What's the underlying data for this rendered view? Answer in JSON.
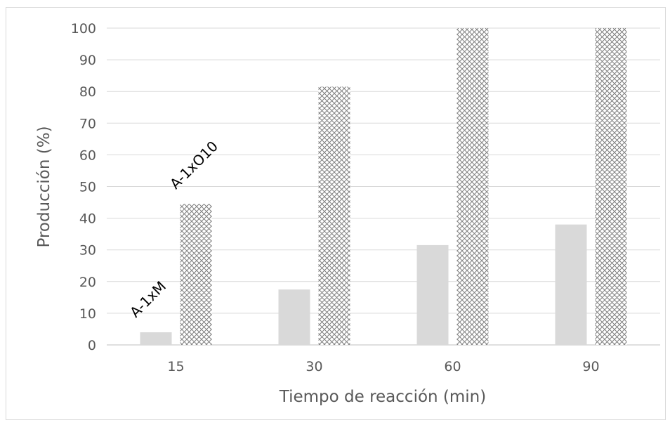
{
  "chart_data": {
    "type": "bar",
    "title": "",
    "xlabel": "Tiempo de reacción (min)",
    "ylabel": "Producción (%)",
    "categories": [
      "15",
      "30",
      "60",
      "90"
    ],
    "ylim": [
      0,
      100
    ],
    "yticks": [
      0,
      10,
      20,
      30,
      40,
      50,
      60,
      70,
      80,
      90,
      100
    ],
    "grid": true,
    "legend": "none",
    "series": [
      {
        "fill": "solid",
        "color": "#d9d9d9",
        "values": [
          4,
          17.5,
          31.5,
          38
        ]
      },
      {
        "fill": "crosshatch",
        "color": "#7f7f7f",
        "values": [
          44.5,
          81.5,
          100,
          100
        ]
      }
    ],
    "annotations": [
      {
        "text": "A-1xM",
        "series": 0,
        "category": "15"
      },
      {
        "text": "A-1xO10",
        "series": 1,
        "category": "15"
      }
    ]
  }
}
